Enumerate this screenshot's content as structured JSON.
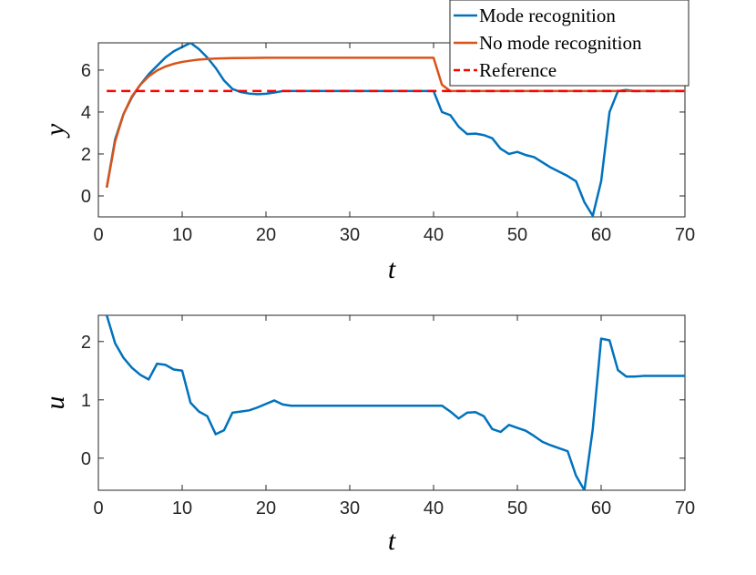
{
  "chart_data": [
    {
      "type": "line",
      "xlabel": "t",
      "ylabel": "y",
      "xlim": [
        0,
        70
      ],
      "ylim": [
        -1,
        7.3
      ],
      "xticks": [
        "0",
        "10",
        "20",
        "30",
        "40",
        "50",
        "60",
        "70"
      ],
      "yticks": [
        "0",
        "2",
        "4",
        "6"
      ],
      "legend_position": "top-right",
      "series": [
        {
          "name": "Mode recognition",
          "color": "#0072bd",
          "style": "solid",
          "points": [
            [
              1,
              0.4
            ],
            [
              2,
              2.7
            ],
            [
              3,
              3.9
            ],
            [
              4,
              4.7
            ],
            [
              5,
              5.3
            ],
            [
              6,
              5.8
            ],
            [
              7,
              6.2
            ],
            [
              8,
              6.6
            ],
            [
              9,
              6.9
            ],
            [
              10,
              7.1
            ],
            [
              11,
              7.3
            ],
            [
              12,
              7.0
            ],
            [
              13,
              6.6
            ],
            [
              14,
              6.1
            ],
            [
              15,
              5.5
            ],
            [
              16,
              5.1
            ],
            [
              17,
              4.95
            ],
            [
              18,
              4.88
            ],
            [
              19,
              4.85
            ],
            [
              20,
              4.87
            ],
            [
              21,
              4.93
            ],
            [
              22,
              5.0
            ],
            [
              25,
              5.0
            ],
            [
              30,
              5.0
            ],
            [
              35,
              5.0
            ],
            [
              40,
              5.0
            ],
            [
              41,
              4.0
            ],
            [
              42,
              3.85
            ],
            [
              43,
              3.3
            ],
            [
              44,
              2.95
            ],
            [
              45,
              2.97
            ],
            [
              46,
              2.9
            ],
            [
              47,
              2.75
            ],
            [
              48,
              2.25
            ],
            [
              49,
              2.0
            ],
            [
              50,
              2.1
            ],
            [
              51,
              1.95
            ],
            [
              52,
              1.85
            ],
            [
              53,
              1.6
            ],
            [
              54,
              1.35
            ],
            [
              55,
              1.15
            ],
            [
              56,
              0.95
            ],
            [
              57,
              0.7
            ],
            [
              58,
              -0.3
            ],
            [
              59,
              -0.95
            ],
            [
              60,
              0.7
            ],
            [
              61,
              4.0
            ],
            [
              62,
              5.0
            ],
            [
              63,
              5.05
            ],
            [
              64,
              5.0
            ],
            [
              65,
              5.0
            ],
            [
              70,
              5.0
            ]
          ]
        },
        {
          "name": "No mode recognition",
          "color": "#d95319",
          "style": "solid",
          "points": [
            [
              1,
              0.4
            ],
            [
              2,
              2.6
            ],
            [
              3,
              3.9
            ],
            [
              4,
              4.75
            ],
            [
              5,
              5.3
            ],
            [
              6,
              5.7
            ],
            [
              7,
              5.98
            ],
            [
              8,
              6.17
            ],
            [
              9,
              6.3
            ],
            [
              10,
              6.39
            ],
            [
              11,
              6.45
            ],
            [
              12,
              6.5
            ],
            [
              13,
              6.53
            ],
            [
              14,
              6.55
            ],
            [
              15,
              6.56
            ],
            [
              16,
              6.57
            ],
            [
              18,
              6.58
            ],
            [
              20,
              6.59
            ],
            [
              25,
              6.59
            ],
            [
              30,
              6.59
            ],
            [
              35,
              6.59
            ],
            [
              40,
              6.59
            ],
            [
              41,
              5.3
            ],
            [
              42,
              5.0
            ],
            [
              45,
              5.0
            ],
            [
              50,
              5.0
            ],
            [
              60,
              5.0
            ],
            [
              70,
              5.0
            ]
          ]
        },
        {
          "name": "Reference",
          "color": "#ff0000",
          "style": "dashed",
          "points": [
            [
              1,
              5
            ],
            [
              70,
              5
            ]
          ]
        }
      ]
    },
    {
      "type": "line",
      "xlabel": "t",
      "ylabel": "u",
      "xlim": [
        0,
        70
      ],
      "ylim": [
        -0.55,
        2.45
      ],
      "xticks": [
        "0",
        "10",
        "20",
        "30",
        "40",
        "50",
        "60",
        "70"
      ],
      "yticks": [
        "0",
        "1",
        "2"
      ],
      "series": [
        {
          "name": "",
          "color": "#0072bd",
          "style": "solid",
          "points": [
            [
              1,
              2.45
            ],
            [
              2,
              1.97
            ],
            [
              3,
              1.72
            ],
            [
              4,
              1.55
            ],
            [
              5,
              1.43
            ],
            [
              6,
              1.35
            ],
            [
              7,
              1.62
            ],
            [
              8,
              1.6
            ],
            [
              9,
              1.52
            ],
            [
              10,
              1.5
            ],
            [
              11,
              0.95
            ],
            [
              12,
              0.8
            ],
            [
              13,
              0.72
            ],
            [
              14,
              0.41
            ],
            [
              15,
              0.48
            ],
            [
              16,
              0.78
            ],
            [
              17,
              0.8
            ],
            [
              18,
              0.82
            ],
            [
              19,
              0.87
            ],
            [
              20,
              0.93
            ],
            [
              21,
              0.99
            ],
            [
              22,
              0.92
            ],
            [
              23,
              0.9
            ],
            [
              25,
              0.9
            ],
            [
              30,
              0.9
            ],
            [
              35,
              0.9
            ],
            [
              38,
              0.9
            ],
            [
              40,
              0.9
            ],
            [
              41,
              0.9
            ],
            [
              42,
              0.8
            ],
            [
              43,
              0.68
            ],
            [
              44,
              0.78
            ],
            [
              45,
              0.79
            ],
            [
              46,
              0.72
            ],
            [
              47,
              0.5
            ],
            [
              48,
              0.45
            ],
            [
              49,
              0.57
            ],
            [
              50,
              0.52
            ],
            [
              51,
              0.47
            ],
            [
              52,
              0.38
            ],
            [
              53,
              0.28
            ],
            [
              54,
              0.22
            ],
            [
              55,
              0.17
            ],
            [
              56,
              0.12
            ],
            [
              57,
              -0.3
            ],
            [
              58,
              -0.55
            ],
            [
              59,
              0.5
            ],
            [
              60,
              2.05
            ],
            [
              61,
              2.02
            ],
            [
              62,
              1.51
            ],
            [
              63,
              1.4
            ],
            [
              64,
              1.4
            ],
            [
              65,
              1.41
            ],
            [
              70,
              1.41
            ]
          ]
        }
      ]
    }
  ]
}
